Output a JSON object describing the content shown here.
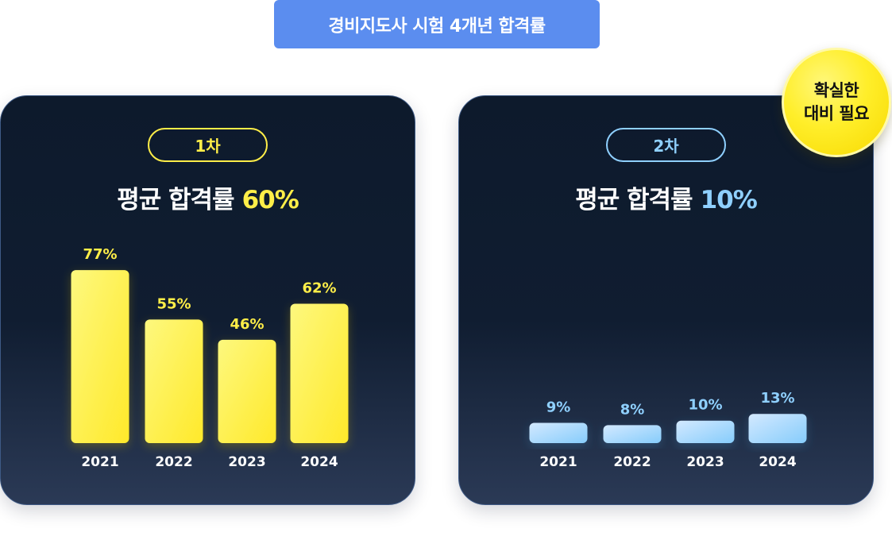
{
  "title": "경비지도사 시험 4개년 합격률",
  "badge": {
    "line1": "확실한",
    "line2": "대비 필요"
  },
  "colors": {
    "title_bg": "#5b8def",
    "round1_accent": "#ffee48",
    "round2_accent": "#8fd0ff",
    "card_bg": "#0d1a2c",
    "badge_bg": "#ffee2a"
  },
  "panels": [
    {
      "round_label": "1차",
      "headline_text": "평균 합격률",
      "headline_value": "60%"
    },
    {
      "round_label": "2차",
      "headline_text": "평균 합격률",
      "headline_value": "10%"
    }
  ],
  "chart_data": [
    {
      "type": "bar",
      "title": "1차",
      "categories": [
        "2021",
        "2022",
        "2023",
        "2024"
      ],
      "values": [
        77,
        55,
        46,
        62
      ],
      "value_labels": [
        "77%",
        "55%",
        "46%",
        "62%"
      ],
      "ylim": [
        0,
        100
      ],
      "grid": false,
      "color": "#ffee48"
    },
    {
      "type": "bar",
      "title": "2차",
      "categories": [
        "2021",
        "2022",
        "2023",
        "2024"
      ],
      "values": [
        9,
        8,
        10,
        13
      ],
      "value_labels": [
        "9%",
        "8%",
        "10%",
        "13%"
      ],
      "ylim": [
        0,
        100
      ],
      "grid": false,
      "color": "#8fd0ff"
    }
  ]
}
